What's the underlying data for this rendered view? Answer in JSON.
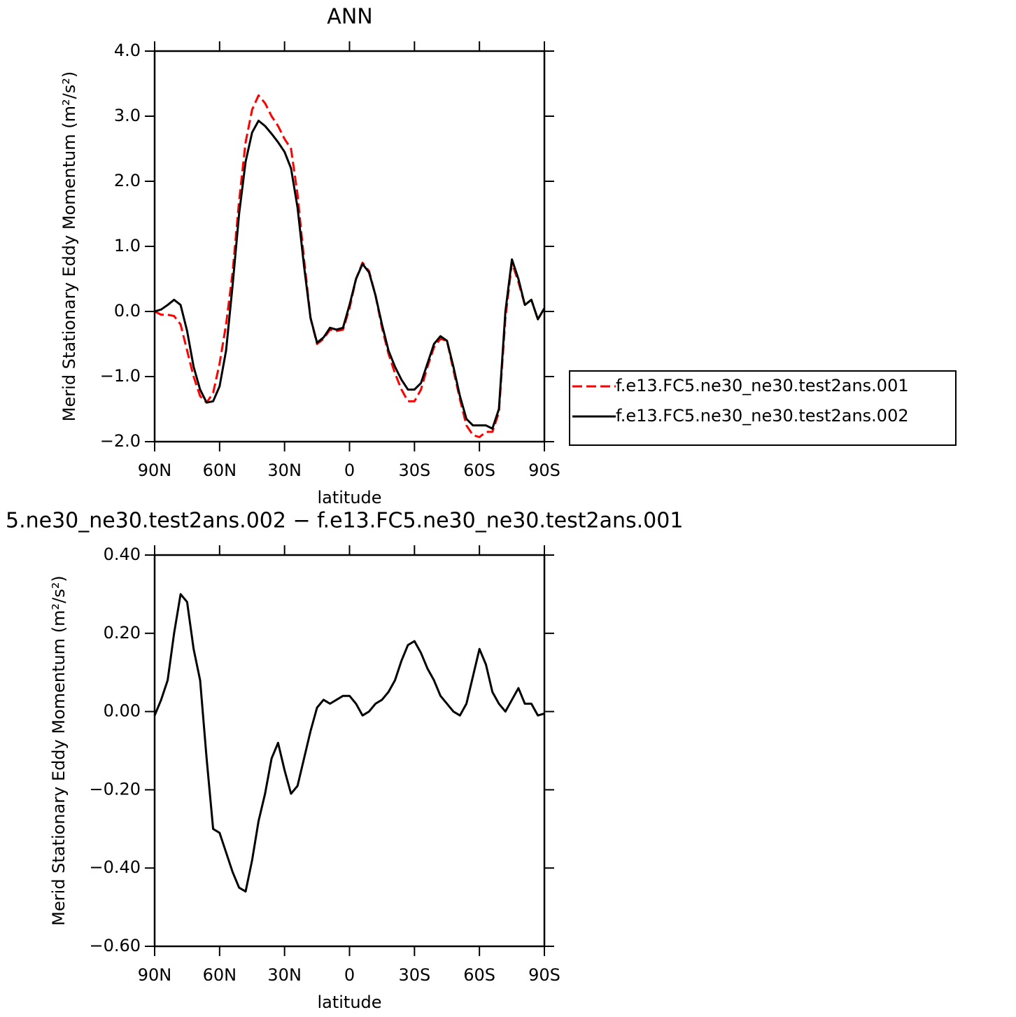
{
  "chart_data": [
    {
      "type": "line",
      "title": "ANN",
      "xlabel": "latitude",
      "ylabel": "Merid Stationary Eddy Momentum (m²/s²)",
      "x": [
        90,
        87,
        84,
        81,
        78,
        75,
        72,
        69,
        66,
        63,
        60,
        57,
        54,
        51,
        48,
        45,
        42,
        39,
        36,
        33,
        30,
        27,
        24,
        21,
        18,
        15,
        12,
        9,
        6,
        3,
        0,
        -3,
        -6,
        -9,
        -12,
        -15,
        -18,
        -21,
        -24,
        -27,
        -30,
        -33,
        -36,
        -39,
        -42,
        -45,
        -48,
        -51,
        -54,
        -57,
        -60,
        -63,
        -66,
        -69,
        -72,
        -75,
        -78,
        -81,
        -84,
        -87,
        -90
      ],
      "xlim": [
        90,
        -90
      ],
      "xticks": [
        {
          "value": 90,
          "label": "90N"
        },
        {
          "value": 60,
          "label": "60N"
        },
        {
          "value": 30,
          "label": "30N"
        },
        0,
        {
          "value": -30,
          "label": "30S"
        },
        {
          "value": -60,
          "label": "60S"
        },
        {
          "value": -90,
          "label": "90S"
        }
      ],
      "ylim": [
        -2,
        4
      ],
      "yticks": [
        {
          "value": -2,
          "label": "−2.0"
        },
        {
          "value": -1,
          "label": "−1.0"
        },
        {
          "value": 0,
          "label": "0.0"
        },
        {
          "value": 1,
          "label": "1.0"
        },
        {
          "value": 2,
          "label": "2.0"
        },
        {
          "value": 3,
          "label": "3.0"
        },
        {
          "value": 4,
          "label": "4.0"
        }
      ],
      "legend": "outside-right",
      "series": [
        {
          "name": "f.e13.FC5.ne30_ne30.test2ans.001",
          "color": "#ff0000",
          "style": "dashed",
          "values": [
            0.0,
            -0.05,
            -0.05,
            -0.07,
            -0.2,
            -0.6,
            -1.0,
            -1.3,
            -1.4,
            -1.25,
            -0.8,
            -0.2,
            0.6,
            1.7,
            2.6,
            3.1,
            3.32,
            3.2,
            3.0,
            2.85,
            2.65,
            2.5,
            1.8,
            0.8,
            -0.1,
            -0.5,
            -0.42,
            -0.28,
            -0.3,
            -0.28,
            0.05,
            0.5,
            0.75,
            0.62,
            0.25,
            -0.25,
            -0.65,
            -0.95,
            -1.2,
            -1.38,
            -1.38,
            -1.2,
            -0.85,
            -0.55,
            -0.42,
            -0.45,
            -0.9,
            -1.35,
            -1.75,
            -1.9,
            -1.93,
            -1.85,
            -1.85,
            -1.55,
            -0.1,
            0.75,
            0.45,
            0.1,
            0.18,
            -0.12,
            0.05
          ]
        },
        {
          "name": "f.e13.FC5.ne30_ne30.test2ans.002",
          "color": "#000000",
          "style": "solid",
          "values": [
            0.0,
            0.03,
            0.1,
            0.18,
            0.1,
            -0.3,
            -0.85,
            -1.2,
            -1.4,
            -1.38,
            -1.15,
            -0.6,
            0.4,
            1.5,
            2.3,
            2.75,
            2.93,
            2.85,
            2.73,
            2.6,
            2.45,
            2.2,
            1.6,
            0.7,
            -0.1,
            -0.48,
            -0.4,
            -0.25,
            -0.28,
            -0.25,
            0.1,
            0.5,
            0.73,
            0.6,
            0.25,
            -0.2,
            -0.6,
            -0.85,
            -1.05,
            -1.2,
            -1.2,
            -1.1,
            -0.8,
            -0.5,
            -0.38,
            -0.45,
            -0.85,
            -1.3,
            -1.65,
            -1.75,
            -1.75,
            -1.75,
            -1.8,
            -1.5,
            0.0,
            0.8,
            0.5,
            0.1,
            0.18,
            -0.12,
            0.05
          ]
        }
      ]
    },
    {
      "type": "line",
      "title": "5.ne30_ne30.test2ans.002 − f.e13.FC5.ne30_ne30.test2ans.001",
      "xlabel": "latitude",
      "ylabel": "Merid Stationary Eddy Momentum (m²/s²)",
      "x": [
        90,
        87,
        84,
        81,
        78,
        75,
        72,
        69,
        66,
        63,
        60,
        57,
        54,
        51,
        48,
        45,
        42,
        39,
        36,
        33,
        30,
        27,
        24,
        21,
        18,
        15,
        12,
        9,
        6,
        3,
        0,
        -3,
        -6,
        -9,
        -12,
        -15,
        -18,
        -21,
        -24,
        -27,
        -30,
        -33,
        -36,
        -39,
        -42,
        -45,
        -48,
        -51,
        -54,
        -57,
        -60,
        -63,
        -66,
        -69,
        -72,
        -75,
        -78,
        -81,
        -84,
        -87,
        -90
      ],
      "xlim": [
        90,
        -90
      ],
      "xticks": [
        {
          "value": 90,
          "label": "90N"
        },
        {
          "value": 60,
          "label": "60N"
        },
        {
          "value": 30,
          "label": "30N"
        },
        0,
        {
          "value": -30,
          "label": "30S"
        },
        {
          "value": -60,
          "label": "60S"
        },
        {
          "value": -90,
          "label": "90S"
        }
      ],
      "ylim": [
        -0.6,
        0.4
      ],
      "yticks": [
        {
          "value": -0.6,
          "label": "−0.60"
        },
        {
          "value": -0.4,
          "label": "−0.40"
        },
        {
          "value": -0.2,
          "label": "−0.20"
        },
        {
          "value": 0,
          "label": "0.00"
        },
        {
          "value": 0.2,
          "label": "0.20"
        },
        {
          "value": 0.4,
          "label": "0.40"
        }
      ],
      "series": [
        {
          "color": "#000000",
          "style": "solid",
          "values": [
            -0.01,
            0.03,
            0.08,
            0.2,
            0.3,
            0.28,
            0.16,
            0.08,
            -0.12,
            -0.3,
            -0.31,
            -0.36,
            -0.41,
            -0.45,
            -0.46,
            -0.38,
            -0.28,
            -0.21,
            -0.12,
            -0.08,
            -0.15,
            -0.21,
            -0.19,
            -0.12,
            -0.05,
            0.01,
            0.03,
            0.02,
            0.03,
            0.04,
            0.04,
            0.02,
            -0.01,
            0.0,
            0.02,
            0.03,
            0.05,
            0.08,
            0.13,
            0.17,
            0.18,
            0.15,
            0.11,
            0.08,
            0.04,
            0.02,
            0.0,
            -0.01,
            0.02,
            0.09,
            0.16,
            0.12,
            0.05,
            0.02,
            0.0,
            0.03,
            0.06,
            0.02,
            0.02,
            -0.01,
            -0.005
          ]
        }
      ]
    }
  ]
}
